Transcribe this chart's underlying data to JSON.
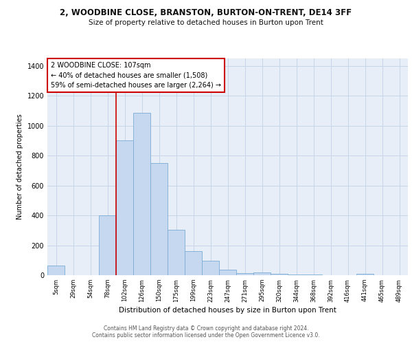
{
  "title_line1": "2, WOODBINE CLOSE, BRANSTON, BURTON-ON-TRENT, DE14 3FF",
  "title_line2": "Size of property relative to detached houses in Burton upon Trent",
  "xlabel": "Distribution of detached houses by size in Burton upon Trent",
  "ylabel": "Number of detached properties",
  "bar_labels": [
    "5sqm",
    "29sqm",
    "54sqm",
    "78sqm",
    "102sqm",
    "126sqm",
    "150sqm",
    "175sqm",
    "199sqm",
    "223sqm",
    "247sqm",
    "271sqm",
    "295sqm",
    "320sqm",
    "344sqm",
    "368sqm",
    "392sqm",
    "416sqm",
    "441sqm",
    "465sqm",
    "489sqm"
  ],
  "bar_values": [
    65,
    0,
    0,
    400,
    900,
    1085,
    750,
    305,
    160,
    95,
    35,
    15,
    18,
    8,
    5,
    5,
    0,
    0,
    10,
    0,
    0
  ],
  "bar_color": "#c5d8f0",
  "bar_edge_color": "#7bacd4",
  "grid_color": "#c8d4e8",
  "bg_color": "#e8eef8",
  "marker_color": "#cc0000",
  "marker_bin_index": 4,
  "annotation_text": "2 WOODBINE CLOSE: 107sqm\n← 40% of detached houses are smaller (1,508)\n59% of semi-detached houses are larger (2,264) →",
  "annotation_box_color": "#cc0000",
  "ylim": [
    0,
    1450
  ],
  "yticks": [
    0,
    200,
    400,
    600,
    800,
    1000,
    1200,
    1400
  ],
  "footer_line1": "Contains HM Land Registry data © Crown copyright and database right 2024.",
  "footer_line2": "Contains public sector information licensed under the Open Government Licence v3.0."
}
